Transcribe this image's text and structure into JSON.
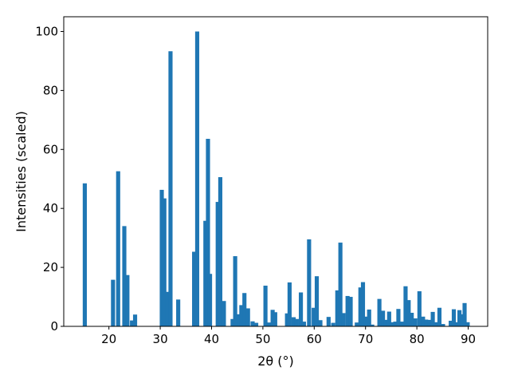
{
  "chart_data": {
    "type": "bar",
    "xlabel": "2θ (°)",
    "ylabel": "Intensities (scaled)",
    "xlim": [
      11.2,
      93.8
    ],
    "ylim": [
      0,
      105
    ],
    "xticks": [
      20,
      30,
      40,
      50,
      60,
      70,
      80,
      90
    ],
    "yticks": [
      0,
      20,
      40,
      60,
      80,
      100
    ],
    "bar_width": 0.8,
    "bar_color": "#1f77b4",
    "grid": false,
    "x": [
      15.3,
      20.8,
      21.8,
      23.0,
      23.6,
      24.5,
      25.1,
      30.3,
      30.8,
      31.4,
      32.0,
      33.5,
      36.6,
      37.2,
      38.8,
      39.3,
      39.7,
      41.2,
      41.7,
      42.4,
      44.1,
      44.6,
      45.3,
      45.8,
      46.4,
      47.1,
      48.0,
      48.7,
      50.5,
      51.2,
      51.9,
      52.4,
      54.7,
      55.2,
      56.0,
      56.6,
      57.4,
      58.0,
      59.0,
      59.9,
      60.5,
      61.2,
      62.8,
      63.7,
      64.5,
      65.1,
      65.7,
      66.5,
      67.1,
      68.3,
      69.0,
      69.5,
      70.0,
      70.7,
      71.3,
      72.7,
      73.4,
      74.0,
      74.6,
      75.2,
      75.8,
      76.4,
      77.1,
      77.8,
      78.4,
      79.0,
      79.7,
      80.5,
      81.2,
      81.8,
      82.5,
      83.1,
      83.7,
      84.4,
      85.1,
      86.6,
      87.2,
      87.9,
      88.3,
      88.8,
      89.3,
      89.9
    ],
    "values": [
      48.5,
      15.8,
      52.6,
      34.0,
      17.4,
      2.0,
      4.0,
      46.3,
      43.4,
      11.7,
      93.3,
      9.1,
      25.3,
      100.0,
      35.8,
      63.6,
      17.8,
      42.2,
      50.6,
      8.6,
      2.5,
      23.8,
      4.1,
      7.2,
      11.3,
      6.1,
      1.7,
      1.2,
      13.8,
      1.3,
      5.6,
      4.8,
      4.4,
      14.9,
      3.1,
      2.5,
      11.5,
      1.6,
      29.5,
      6.3,
      17.0,
      2.1,
      3.2,
      1.2,
      12.2,
      28.4,
      4.5,
      10.3,
      10.0,
      1.3,
      13.2,
      15.0,
      3.3,
      5.7,
      0.6,
      9.3,
      5.3,
      2.2,
      5.0,
      1.4,
      1.6,
      5.9,
      1.6,
      13.6,
      8.9,
      4.6,
      2.7,
      11.9,
      3.3,
      2.3,
      2.2,
      4.9,
      1.4,
      6.3,
      0.8,
      1.9,
      5.8,
      1.4,
      5.5,
      4.1,
      7.9,
      1.4
    ]
  }
}
